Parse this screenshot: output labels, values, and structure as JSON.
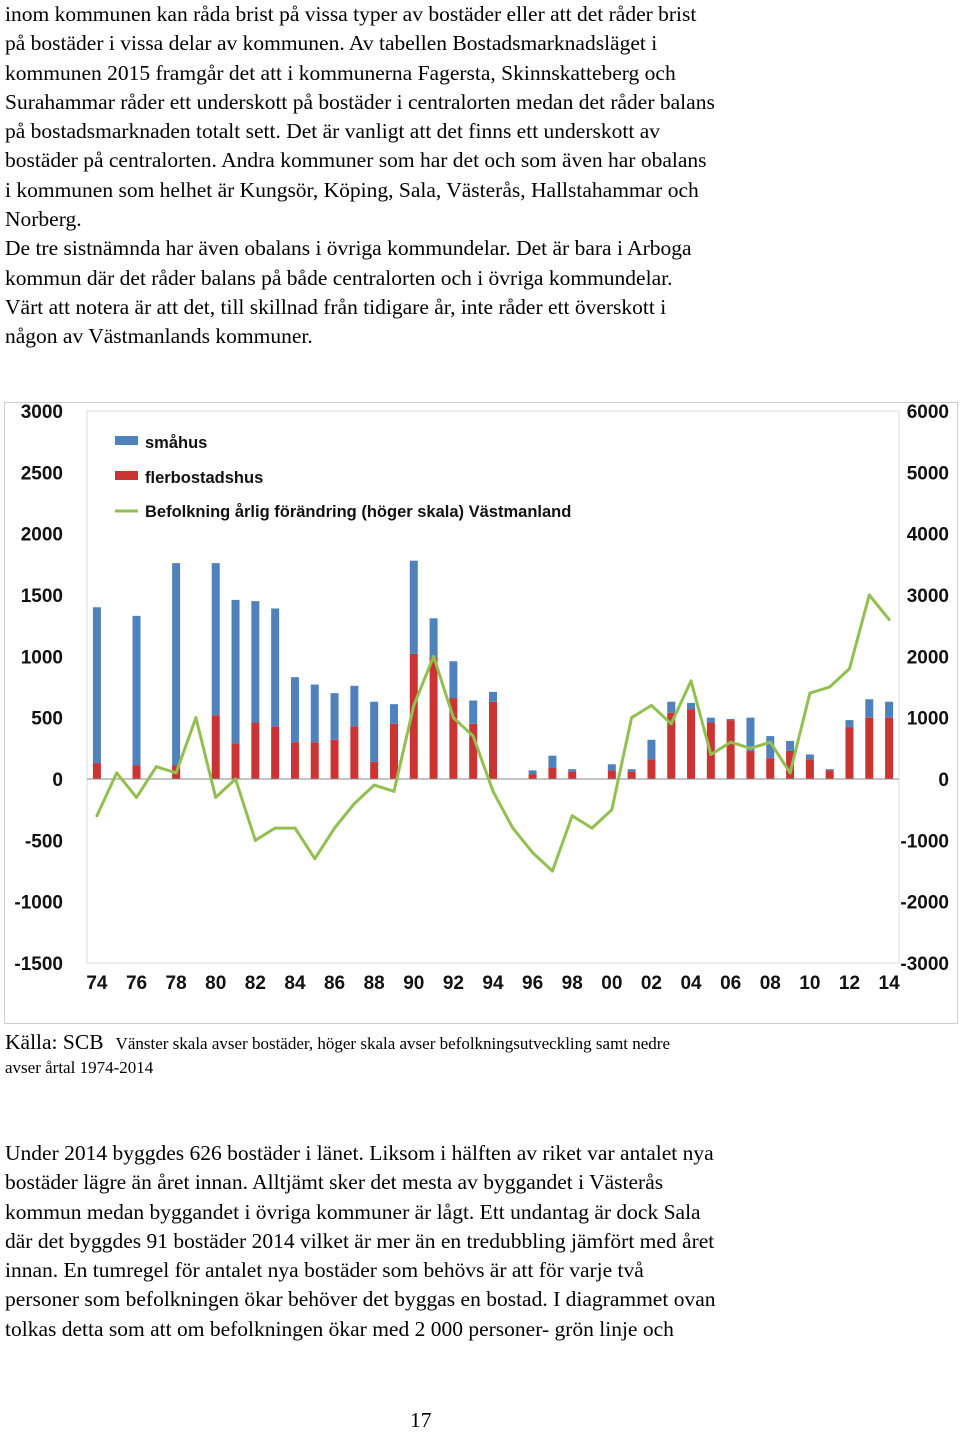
{
  "paragraph_top": [
    "inom kommunen kan råda brist på vissa typer av bostäder eller att det råder brist",
    "på bostäder i vissa delar av kommunen. Av tabellen Bostadsmarknadsläget i",
    "kommunen 2015 framgår det att i kommunerna Fagersta, Skinnskatteberg och",
    "Surahammar råder ett underskott på bostäder i centralorten medan det råder balans",
    "på bostadsmarknaden totalt sett. Det är vanligt att det finns ett underskott av",
    "bostäder på centralorten. Andra kommuner som har det och som även har obalans",
    "i kommunen som helhet är Kungsör, Köping, Sala, Västerås, Hallstahammar och",
    "Norberg.",
    "De tre sistnämnda har även obalans i övriga kommundelar. Det är bara i Arboga",
    "kommun där det råder balans på både centralorten och i övriga kommundelar.",
    "Värt att notera är att det, till skillnad från tidigare år, inte råder ett överskott i",
    "någon av Västmanlands kommuner."
  ],
  "chart_data": {
    "type": "bar",
    "stacked": true,
    "categories": [
      "1974",
      "1975",
      "1976",
      "1977",
      "1978",
      "1979",
      "1980",
      "1981",
      "1982",
      "1983",
      "1984",
      "1985",
      "1986",
      "1987",
      "1988",
      "1989",
      "1990",
      "1991",
      "1992",
      "1993",
      "1994",
      "1995",
      "1996",
      "1997",
      "1998",
      "1999",
      "2000",
      "2001",
      "2002",
      "2003",
      "2004",
      "2005",
      "2006",
      "2007",
      "2008",
      "2009",
      "2010",
      "2011",
      "2012",
      "2013",
      "2014"
    ],
    "x_tick_labels": [
      "74",
      "76",
      "78",
      "80",
      "82",
      "84",
      "86",
      "88",
      "90",
      "92",
      "94",
      "96",
      "98",
      "00",
      "02",
      "04",
      "06",
      "08",
      "10",
      "12",
      "14"
    ],
    "left_axis": {
      "ylim": [
        -1500,
        3000
      ],
      "ticks": [
        "3000",
        "2500",
        "2000",
        "1500",
        "1000",
        "500",
        "0",
        "-500",
        "-1000",
        "-1500"
      ]
    },
    "right_axis": {
      "ylim": [
        -3000,
        6000
      ],
      "ticks": [
        "6000",
        "5000",
        "4000",
        "3000",
        "2000",
        "1000",
        "0",
        "-1000",
        "-2000",
        "-3000"
      ]
    },
    "series": [
      {
        "name": "flerbostadshus",
        "color": "#cc3333",
        "axis": "left",
        "values": [
          130,
          0,
          110,
          0,
          110,
          0,
          520,
          290,
          460,
          430,
          300,
          300,
          320,
          430,
          140,
          450,
          1020,
          990,
          660,
          450,
          630,
          0,
          40,
          90,
          60,
          0,
          70,
          60,
          160,
          540,
          570,
          460,
          480,
          230,
          170,
          230,
          160,
          70,
          420,
          500,
          500
        ]
      },
      {
        "name": "småhus",
        "color": "#4f81bd",
        "axis": "left",
        "values": [
          1270,
          0,
          1220,
          0,
          1650,
          0,
          1240,
          1170,
          990,
          960,
          530,
          470,
          380,
          330,
          490,
          160,
          760,
          320,
          300,
          190,
          80,
          0,
          30,
          100,
          20,
          0,
          50,
          20,
          160,
          90,
          50,
          40,
          10,
          270,
          180,
          80,
          40,
          10,
          60,
          150,
          130
        ]
      },
      {
        "name": "Befolkning årlig förändring (höger skala) Västmanland",
        "color": "#92c050",
        "axis": "right",
        "values": [
          -600,
          100,
          -300,
          200,
          100,
          1000,
          -300,
          0,
          -1000,
          -800,
          -800,
          -1300,
          -800,
          -400,
          -100,
          -200,
          1200,
          2000,
          1000,
          700,
          -200,
          -800,
          -1200,
          -1500,
          -600,
          -800,
          -500,
          1000,
          1200,
          900,
          1600,
          400,
          600,
          500,
          600,
          100,
          1400,
          1500,
          1800,
          3000,
          2600
        ]
      }
    ]
  },
  "caption": {
    "source": "Källa: SCB",
    "note_line1": "Vänster skala avser bostäder, höger skala avser befolkningsutveckling samt nedre",
    "note_line2": "avser årtal 1974-2014"
  },
  "paragraph_bottom": [
    "Under 2014 byggdes 626 bostäder i länet. Liksom i hälften av riket var antalet nya",
    "bostäder lägre än året innan. Alltjämt sker det mesta av byggandet i Västerås",
    "kommun medan byggandet i övriga kommuner är lågt. Ett undantag är dock Sala",
    "där det byggdes 91 bostäder 2014 vilket är mer än en tredubbling jämfört med året",
    "innan. En tumregel för antalet nya bostäder som behövs är att för varje två",
    "personer som befolkningen ökar behöver det byggas en bostad. I diagrammet ovan",
    "tolkas detta som att om befolkningen ökar med 2 000 personer- grön linje och"
  ],
  "page_number": "17"
}
